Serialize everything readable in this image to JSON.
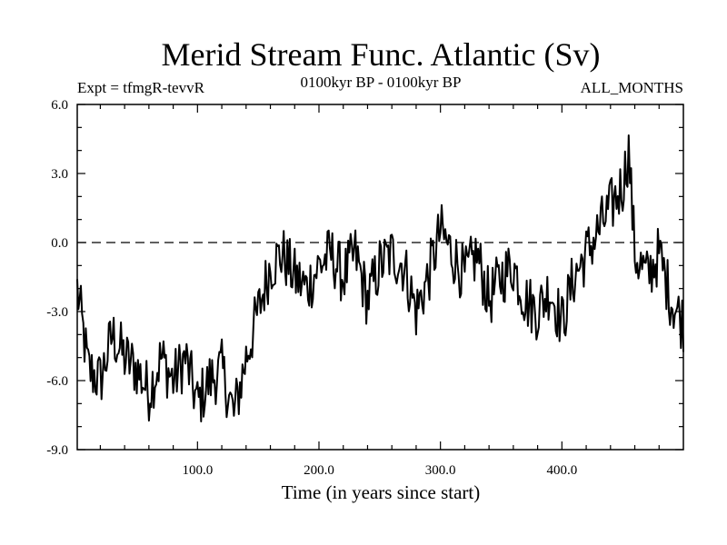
{
  "chart_data": {
    "type": "line",
    "title": "Merid Stream Func. Atlantic (Sv)",
    "subtitle_left": "Expt = tfmgR-tevvR",
    "subtitle_center": "0100kyr BP - 0100kyr BP",
    "subtitle_right": "ALL_MONTHS",
    "xlabel": "Time (in years since start)",
    "ylabel": "",
    "xlim": [
      1,
      500
    ],
    "ylim": [
      -9,
      6
    ],
    "xticks": [
      100,
      200,
      300,
      400
    ],
    "xtick_labels": [
      "100.0",
      "200.0",
      "300.0",
      "400.0"
    ],
    "yticks": [
      6,
      3,
      0,
      -3,
      -6,
      -9
    ],
    "ytick_labels": [
      "6.0",
      "3.0",
      "0.0",
      "-3.0",
      "-6.0",
      "-9.0"
    ],
    "reference_line": 0,
    "series": [
      {
        "name": "Merid Stream Func.",
        "x": [
          1,
          10,
          20,
          30,
          40,
          50,
          60,
          70,
          80,
          90,
          100,
          110,
          120,
          130,
          140,
          150,
          160,
          170,
          180,
          190,
          200,
          210,
          220,
          230,
          240,
          250,
          260,
          270,
          280,
          290,
          300,
          310,
          320,
          330,
          340,
          350,
          360,
          370,
          380,
          390,
          400,
          410,
          420,
          430,
          440,
          450,
          455,
          460,
          470,
          480,
          490,
          500
        ],
        "values": [
          -2.0,
          -5.5,
          -6.0,
          -4.0,
          -5.0,
          -5.5,
          -6.5,
          -5.0,
          -6.0,
          -5.0,
          -7.0,
          -6.0,
          -5.5,
          -7.5,
          -5.0,
          -3.0,
          -1.0,
          -0.5,
          -1.5,
          -2.0,
          -1.0,
          -0.5,
          -1.5,
          -0.5,
          -2.5,
          -1.0,
          -0.5,
          -1.0,
          -3.0,
          -1.5,
          0.5,
          -0.5,
          -1.5,
          -0.5,
          -2.5,
          -1.5,
          -1.0,
          -2.5,
          -3.0,
          -2.0,
          -3.5,
          -1.5,
          -0.5,
          0.5,
          1.5,
          2.5,
          4.0,
          -0.5,
          -1.5,
          -0.5,
          -2.5,
          -3.5
        ]
      }
    ]
  }
}
